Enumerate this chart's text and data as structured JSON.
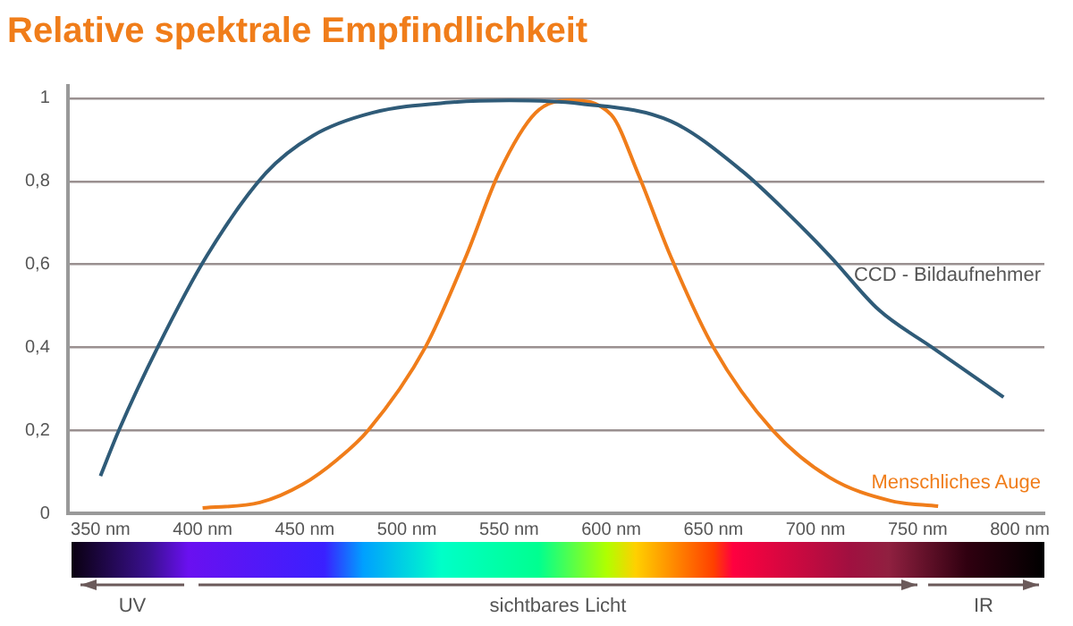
{
  "chart_data": {
    "type": "line",
    "title": "Relative spektrale Empfindlichkeit",
    "xlim": [
      334,
      812
    ],
    "ylim": [
      0,
      1.03
    ],
    "xticks": [
      {
        "value": 350,
        "label": "350 nm"
      },
      {
        "value": 400,
        "label": "400 nm"
      },
      {
        "value": 450,
        "label": "450 nm"
      },
      {
        "value": 500,
        "label": "500 nm"
      },
      {
        "value": 550,
        "label": "550 nm"
      },
      {
        "value": 600,
        "label": "600 nm"
      },
      {
        "value": 650,
        "label": "650 nm"
      },
      {
        "value": 700,
        "label": "700 nm"
      },
      {
        "value": 750,
        "label": "750 nm"
      },
      {
        "value": 800,
        "label": "800 nm"
      }
    ],
    "yticks": [
      0,
      {
        "value": 0.2,
        "label": "0,2"
      },
      {
        "value": 0.4,
        "label": "0,4"
      },
      {
        "value": 0.6,
        "label": "0,6"
      },
      {
        "value": 0.8,
        "label": "0,8"
      },
      1
    ],
    "grid": "y",
    "legend": false,
    "marker": "none",
    "line_style": "solid",
    "series": [
      {
        "name": "CCD - Bildaufnehmer",
        "color": "#2f5b78",
        "x": [
          350,
          359,
          378,
          402,
          431,
          454,
          483,
          521,
          550,
          585,
          629,
          664,
          687,
          707,
          731,
          757,
          792
        ],
        "values": [
          0.09,
          0.2,
          0.4,
          0.62,
          0.82,
          0.91,
          0.965,
          0.99,
          0.995,
          0.987,
          0.945,
          0.825,
          0.72,
          0.62,
          0.49,
          0.4,
          0.28
        ]
      },
      {
        "name": "Menschliches Auge",
        "color": "#f07d1a",
        "x": [
          400,
          428,
          449,
          466,
          481,
          509,
          529,
          545,
          563,
          580,
          600,
          613,
          629,
          650,
          679,
          707,
          737,
          760
        ],
        "values": [
          0.013,
          0.026,
          0.07,
          0.13,
          0.2,
          0.4,
          0.62,
          0.82,
          0.965,
          0.995,
          0.96,
          0.82,
          0.62,
          0.4,
          0.2,
          0.086,
          0.03,
          0.017
        ]
      }
    ],
    "annotations": [
      "UV",
      "sichtbares Licht",
      "IR"
    ]
  }
}
